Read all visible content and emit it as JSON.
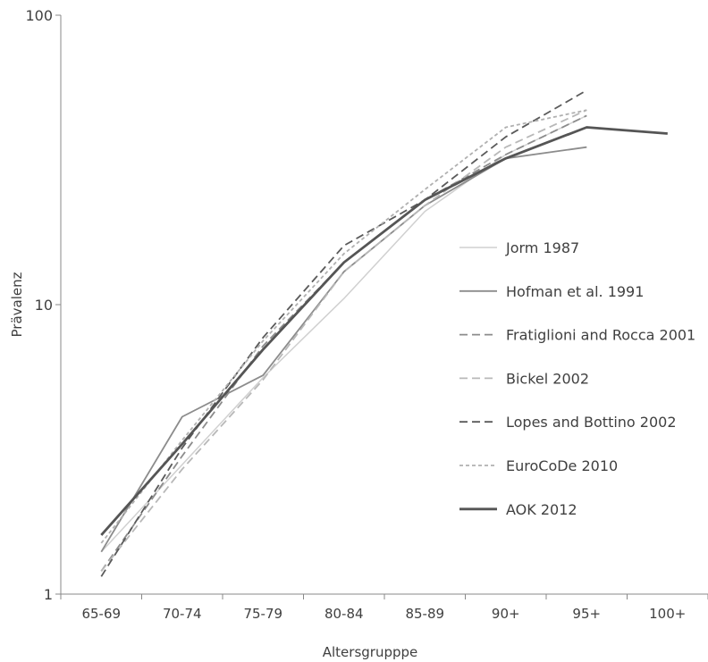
{
  "chart_data": {
    "type": "line",
    "title": "",
    "xlabel": "Altersgrupppe",
    "ylabel": "Prävalenz",
    "yscale": "log",
    "ylim": [
      1,
      100
    ],
    "yticks": [
      "1",
      "10",
      "100"
    ],
    "categories": [
      "65-69",
      "70-74",
      "75-79",
      "80-84",
      "85-89",
      "90+",
      "95+",
      "100+"
    ],
    "grid": false,
    "legend_position": "right",
    "series": [
      {
        "name": "Jorm 1987",
        "color": "#d0d0d0",
        "dash": "solid",
        "width": 1.5,
        "values": [
          1.4,
          2.8,
          5.6,
          10.5,
          21,
          33,
          45,
          null
        ]
      },
      {
        "name": "Hofman et al. 1991",
        "color": "#8c8c8c",
        "dash": "solid",
        "width": 1.8,
        "values": [
          1.4,
          4.1,
          5.7,
          13,
          22,
          32,
          35,
          null
        ]
      },
      {
        "name": "Fratiglioni and Rocca 2001",
        "color": "#8c8c8c",
        "dash": "dashed",
        "width": 1.8,
        "values": [
          1.2,
          3.0,
          7.2,
          14,
          23,
          33,
          45,
          null
        ]
      },
      {
        "name": "Bickel 2002",
        "color": "#b8b8b8",
        "dash": "dashed",
        "width": 1.8,
        "values": [
          1.2,
          2.7,
          5.5,
          13,
          22,
          35,
          47,
          null
        ]
      },
      {
        "name": "Lopes and Bottino 2002",
        "color": "#5a5a5a",
        "dash": "dashed",
        "width": 1.8,
        "values": [
          1.15,
          3.2,
          7.7,
          16,
          23,
          38,
          55,
          null
        ]
      },
      {
        "name": "EuroCoDe 2010",
        "color": "#b0b0b0",
        "dash": "dotted",
        "width": 1.8,
        "values": [
          1.5,
          3.4,
          7.5,
          15,
          25,
          41,
          47,
          null
        ]
      },
      {
        "name": "AOK 2012",
        "color": "#555555",
        "dash": "solid",
        "width": 2.8,
        "values": [
          1.6,
          3.3,
          7.0,
          14,
          23,
          32,
          41,
          39
        ]
      }
    ]
  }
}
